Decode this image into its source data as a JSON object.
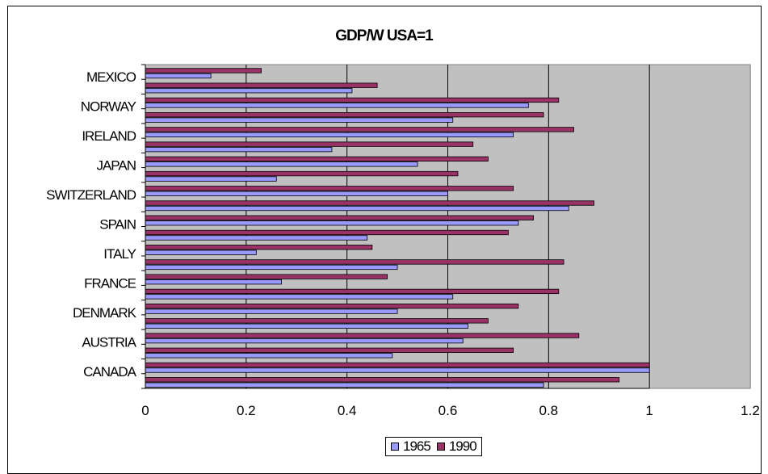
{
  "chart_data": {
    "type": "bar",
    "orientation": "horizontal",
    "title": "GDP/W USA=1",
    "xlabel": "",
    "ylabel": "",
    "xlim": [
      0,
      1.2
    ],
    "x_ticks": [
      "0",
      "0.2",
      "0.4",
      "0.6",
      "0.8",
      "1",
      "1.2"
    ],
    "grid": "vertical",
    "legend_position": "bottom",
    "category_labels_shown": [
      "CANADA",
      "AUSTRIA",
      "DENMARK",
      "FRANCE",
      "ITALY",
      "SPAIN",
      "SWITZERLAND",
      "JAPAN",
      "IRELAND",
      "NORWAY",
      "MEXICO"
    ],
    "categories": [
      "CANADA",
      "",
      "AUSTRIA",
      "",
      "DENMARK",
      "",
      "FRANCE",
      "",
      "ITALY",
      "",
      "SPAIN",
      "",
      "SWITZERLAND",
      "",
      "JAPAN",
      "",
      "IRELAND",
      "",
      "NORWAY",
      "",
      "MEXICO",
      ""
    ],
    "series": [
      {
        "name": "1965",
        "color": "#9999FF",
        "values": [
          0.79,
          1.0,
          0.49,
          0.63,
          0.64,
          0.5,
          0.61,
          0.27,
          0.5,
          0.22,
          0.44,
          0.74,
          0.84,
          0.6,
          0.26,
          0.54,
          0.37,
          0.73,
          0.61,
          0.76,
          0.41,
          0.13
        ]
      },
      {
        "name": "1990",
        "color": "#993366",
        "values": [
          0.94,
          1.0,
          0.73,
          0.86,
          0.68,
          0.74,
          0.82,
          0.48,
          0.83,
          0.45,
          0.72,
          0.77,
          0.89,
          0.73,
          0.62,
          0.68,
          0.65,
          0.85,
          0.79,
          0.82,
          0.46,
          0.23
        ]
      }
    ]
  },
  "colors": {
    "plot_background": "#C0C0C0",
    "gridline": "#000000",
    "frame": "#000000"
  }
}
